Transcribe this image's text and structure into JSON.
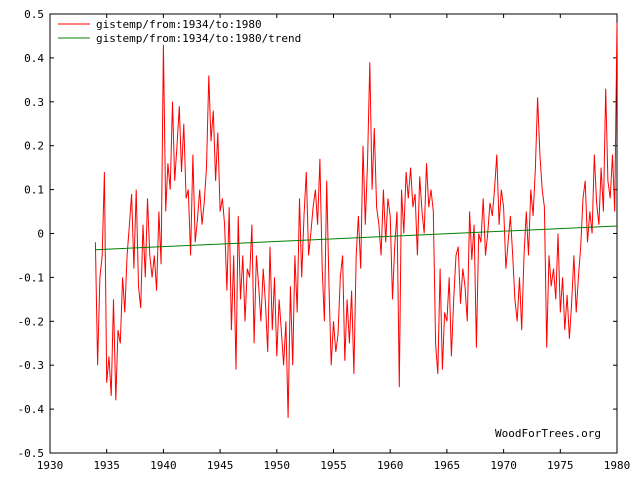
{
  "chart_data": {
    "type": "line",
    "title": "",
    "xlabel": "",
    "ylabel": "",
    "xlim": [
      1930,
      1980
    ],
    "ylim": [
      -0.5,
      0.5
    ],
    "x_ticks": [
      1930,
      1935,
      1940,
      1945,
      1950,
      1955,
      1960,
      1965,
      1970,
      1975,
      1980
    ],
    "y_ticks": [
      -0.5,
      -0.4,
      -0.3,
      -0.2,
      -0.1,
      0,
      0.1,
      0.2,
      0.3,
      0.4,
      0.5
    ],
    "x_tick_labels": [
      "1930",
      "1935",
      "1940",
      "1945",
      "1950",
      "1955",
      "1960",
      "1965",
      "1970",
      "1975",
      "1980"
    ],
    "y_tick_labels": [
      "-0.5",
      "-0.4",
      "-0.3",
      "-0.2",
      "-0.1",
      "0",
      "0.1",
      "0.2",
      "0.3",
      "0.4",
      "0.5"
    ],
    "grid": false,
    "legend_position": "top-left",
    "credit": "WoodForTrees.org",
    "series": [
      {
        "name": "gistemp/from:1934/to:1980",
        "color": "#ff0000",
        "x": [
          1934.0,
          1934.2,
          1934.4,
          1934.6,
          1934.8,
          1935.0,
          1935.2,
          1935.4,
          1935.6,
          1935.8,
          1936.0,
          1936.2,
          1936.4,
          1936.6,
          1936.8,
          1937.0,
          1937.2,
          1937.4,
          1937.6,
          1937.8,
          1938.0,
          1938.2,
          1938.4,
          1938.6,
          1938.8,
          1939.0,
          1939.2,
          1939.4,
          1939.6,
          1939.8,
          1940.0,
          1940.2,
          1940.4,
          1940.6,
          1940.8,
          1941.0,
          1941.2,
          1941.4,
          1941.6,
          1941.8,
          1942.0,
          1942.2,
          1942.4,
          1942.6,
          1942.8,
          1943.0,
          1943.2,
          1943.4,
          1943.6,
          1943.8,
          1944.0,
          1944.2,
          1944.4,
          1944.6,
          1944.8,
          1945.0,
          1945.2,
          1945.4,
          1945.6,
          1945.8,
          1946.0,
          1946.2,
          1946.4,
          1946.6,
          1946.8,
          1947.0,
          1947.2,
          1947.4,
          1947.6,
          1947.8,
          1948.0,
          1948.2,
          1948.4,
          1948.6,
          1948.8,
          1949.0,
          1949.2,
          1949.4,
          1949.6,
          1949.8,
          1950.0,
          1950.2,
          1950.4,
          1950.6,
          1950.8,
          1951.0,
          1951.2,
          1951.4,
          1951.6,
          1951.8,
          1952.0,
          1952.2,
          1952.4,
          1952.6,
          1952.8,
          1953.0,
          1953.2,
          1953.4,
          1953.6,
          1953.8,
          1954.0,
          1954.2,
          1954.4,
          1954.6,
          1954.8,
          1955.0,
          1955.2,
          1955.4,
          1955.6,
          1955.8,
          1956.0,
          1956.2,
          1956.4,
          1956.6,
          1956.8,
          1957.0,
          1957.2,
          1957.4,
          1957.6,
          1957.8,
          1958.0,
          1958.2,
          1958.4,
          1958.6,
          1958.8,
          1959.0,
          1959.2,
          1959.4,
          1959.6,
          1959.8,
          1960.0,
          1960.2,
          1960.4,
          1960.6,
          1960.8,
          1961.0,
          1961.2,
          1961.4,
          1961.6,
          1961.8,
          1962.0,
          1962.2,
          1962.4,
          1962.6,
          1962.8,
          1963.0,
          1963.2,
          1963.4,
          1963.6,
          1963.8,
          1964.0,
          1964.2,
          1964.4,
          1964.6,
          1964.8,
          1965.0,
          1965.2,
          1965.4,
          1965.6,
          1965.8,
          1966.0,
          1966.2,
          1966.4,
          1966.6,
          1966.8,
          1967.0,
          1967.2,
          1967.4,
          1967.6,
          1967.8,
          1968.0,
          1968.2,
          1968.4,
          1968.6,
          1968.8,
          1969.0,
          1969.2,
          1969.4,
          1969.6,
          1969.8,
          1970.0,
          1970.2,
          1970.4,
          1970.6,
          1970.8,
          1971.0,
          1971.2,
          1971.4,
          1971.6,
          1971.8,
          1972.0,
          1972.2,
          1972.4,
          1972.6,
          1972.8,
          1973.0,
          1973.2,
          1973.4,
          1973.6,
          1973.8,
          1974.0,
          1974.2,
          1974.4,
          1974.6,
          1974.8,
          1975.0,
          1975.2,
          1975.4,
          1975.6,
          1975.8,
          1976.0,
          1976.2,
          1976.4,
          1976.6,
          1976.8,
          1977.0,
          1977.2,
          1977.4,
          1977.6,
          1977.8,
          1978.0,
          1978.2,
          1978.4,
          1978.6,
          1978.8,
          1979.0,
          1979.2,
          1979.4,
          1979.6,
          1979.8,
          1980.0
        ],
        "y": [
          -0.02,
          -0.3,
          -0.1,
          -0.05,
          0.14,
          -0.34,
          -0.28,
          -0.37,
          -0.15,
          -0.38,
          -0.22,
          -0.25,
          -0.1,
          -0.18,
          -0.05,
          0.02,
          0.09,
          -0.08,
          0.1,
          -0.12,
          -0.17,
          0.02,
          -0.1,
          0.08,
          -0.05,
          -0.1,
          -0.05,
          -0.13,
          0.05,
          -0.07,
          0.43,
          0.05,
          0.16,
          0.1,
          0.3,
          0.12,
          0.2,
          0.29,
          0.14,
          0.25,
          0.08,
          0.1,
          -0.05,
          0.18,
          -0.02,
          0.03,
          0.1,
          0.02,
          0.07,
          0.15,
          0.36,
          0.21,
          0.28,
          0.12,
          0.23,
          0.05,
          0.08,
          0.02,
          -0.13,
          0.06,
          -0.22,
          -0.05,
          -0.31,
          0.04,
          -0.15,
          -0.05,
          -0.2,
          -0.08,
          -0.1,
          0.02,
          -0.25,
          -0.05,
          -0.12,
          -0.2,
          -0.08,
          -0.16,
          -0.27,
          -0.03,
          -0.22,
          -0.1,
          -0.28,
          -0.15,
          -0.22,
          -0.3,
          -0.2,
          -0.42,
          -0.12,
          -0.3,
          -0.05,
          -0.18,
          0.08,
          -0.1,
          0.04,
          0.14,
          -0.05,
          0.0,
          0.06,
          0.1,
          0.02,
          0.17,
          -0.08,
          -0.2,
          0.12,
          -0.12,
          -0.3,
          -0.2,
          -0.27,
          -0.23,
          -0.1,
          -0.05,
          -0.29,
          -0.15,
          -0.25,
          -0.13,
          -0.32,
          -0.05,
          0.04,
          -0.08,
          0.2,
          0.02,
          0.16,
          0.39,
          0.1,
          0.24,
          0.06,
          0.02,
          -0.05,
          0.1,
          -0.02,
          0.08,
          0.04,
          -0.15,
          -0.03,
          0.05,
          -0.35,
          0.1,
          0.0,
          0.14,
          0.08,
          0.15,
          0.06,
          0.09,
          -0.05,
          0.13,
          0.05,
          0.0,
          0.16,
          0.06,
          0.1,
          0.05,
          -0.25,
          -0.32,
          -0.08,
          -0.31,
          -0.18,
          -0.2,
          -0.1,
          -0.28,
          -0.15,
          -0.05,
          -0.03,
          -0.16,
          -0.08,
          -0.12,
          -0.2,
          0.05,
          -0.06,
          0.02,
          -0.26,
          0.0,
          -0.02,
          0.08,
          -0.05,
          0.0,
          0.07,
          0.04,
          0.1,
          0.18,
          0.02,
          0.1,
          0.06,
          -0.08,
          -0.02,
          0.04,
          -0.05,
          -0.15,
          -0.2,
          -0.1,
          -0.22,
          -0.05,
          0.05,
          -0.05,
          0.1,
          0.04,
          0.15,
          0.31,
          0.18,
          0.1,
          0.06,
          -0.26,
          -0.05,
          -0.12,
          -0.08,
          -0.15,
          0.0,
          -0.18,
          -0.1,
          -0.22,
          -0.14,
          -0.24,
          -0.16,
          -0.05,
          -0.18,
          -0.1,
          -0.03,
          0.08,
          0.12,
          -0.02,
          0.05,
          0.0,
          0.18,
          0.07,
          0.02,
          0.15,
          0.05,
          0.33,
          0.12,
          0.08,
          0.18,
          0.05,
          0.48
        ]
      },
      {
        "name": "gistemp/from:1934/to:1980/trend",
        "color": "#008000",
        "x": [
          1934.0,
          1980.0
        ],
        "y": [
          -0.037,
          0.017
        ]
      }
    ]
  }
}
